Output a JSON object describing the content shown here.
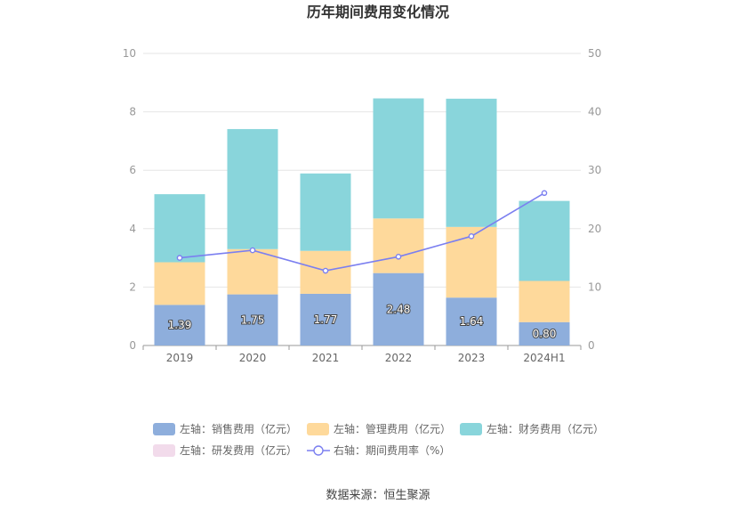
{
  "chart_data": {
    "type": "bar",
    "title": "历年期间费用变化情况",
    "categories": [
      "2019",
      "2020",
      "2021",
      "2022",
      "2023",
      "2024H1"
    ],
    "left_axis": {
      "min": 0,
      "max": 10,
      "ticks": [
        "0",
        "2",
        "4",
        "6",
        "8",
        "10"
      ]
    },
    "right_axis": {
      "min": 0,
      "max": 50,
      "ticks": [
        "0",
        "10",
        "20",
        "30",
        "40",
        "50"
      ]
    },
    "series": [
      {
        "name": "左轴：销售费用（亿元）",
        "stack": "total",
        "axis": "left",
        "color": "#8eaedc",
        "values": [
          1.39,
          1.75,
          1.77,
          2.48,
          1.64,
          0.8
        ],
        "labels": [
          "1.39",
          "1.75",
          "1.77",
          "2.48",
          "1.64",
          "0.80"
        ]
      },
      {
        "name": "左轴：管理费用（亿元）",
        "stack": "total",
        "axis": "left",
        "color": "#fed99b",
        "values": [
          1.46,
          1.55,
          1.47,
          1.87,
          2.42,
          1.41
        ]
      },
      {
        "name": "左轴：财务费用（亿元）",
        "stack": "total",
        "axis": "left",
        "color": "#89d5db",
        "values": [
          2.33,
          4.11,
          2.65,
          4.11,
          4.39,
          2.74
        ]
      },
      {
        "name": "左轴：研发费用（亿元）",
        "stack": "total",
        "axis": "left",
        "color": "#f2dbeb",
        "values": [
          0,
          0,
          0,
          0,
          0,
          0
        ]
      },
      {
        "name": "右轴：期间费用率（%）",
        "type": "line",
        "axis": "right",
        "color": "#7b7ff0",
        "values": [
          15.0,
          16.3,
          12.8,
          15.2,
          18.7,
          26.1
        ]
      }
    ],
    "source": "数据来源：恒生聚源"
  }
}
